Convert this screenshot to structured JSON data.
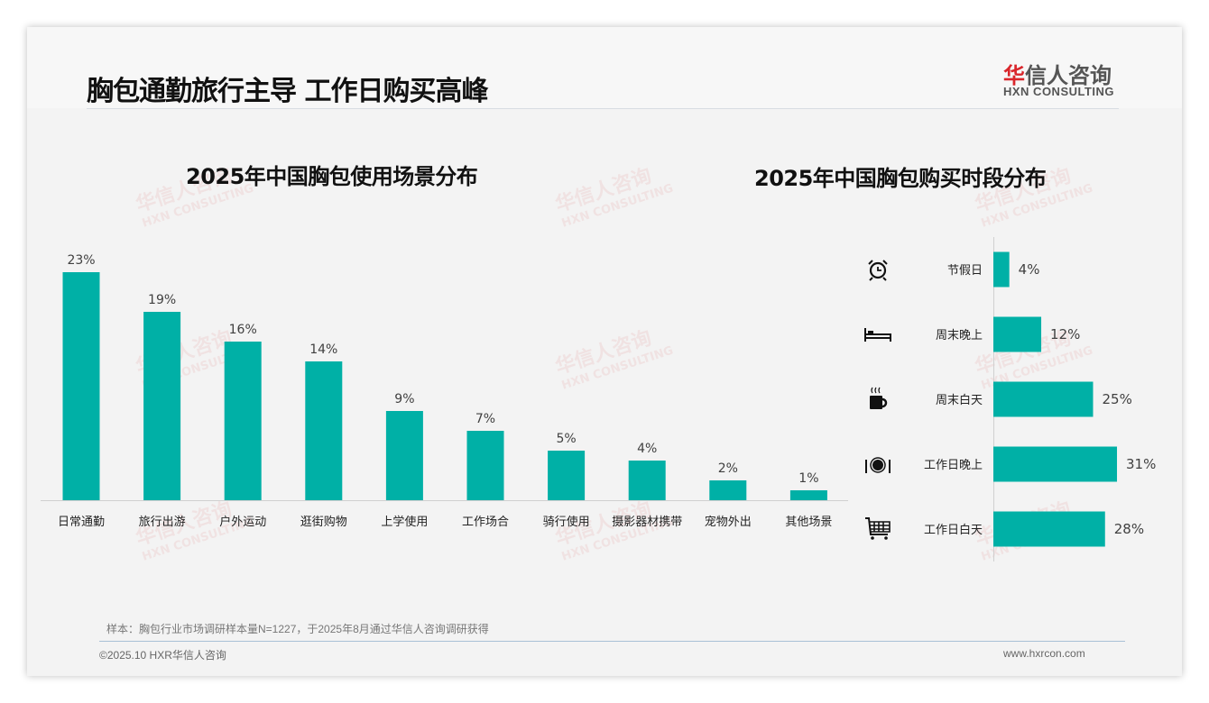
{
  "header": {
    "title": "胸包通勤旅行主导 工作日购买高峰"
  },
  "logo": {
    "cn_prefix": "华",
    "cn_rest": "信人咨询",
    "en": "HXN CONSULTING"
  },
  "colors": {
    "bar": "#00b0a6",
    "logo_red": "#d9262b"
  },
  "chart_data": [
    {
      "type": "bar",
      "title": "2025年中国胸包使用场景分布",
      "categories": [
        "日常通勤",
        "旅行出游",
        "户外运动",
        "逛街购物",
        "上学使用",
        "工作场合",
        "骑行使用",
        "摄影器材携带",
        "宠物外出",
        "其他场景"
      ],
      "values": [
        23,
        19,
        16,
        14,
        9,
        7,
        5,
        4,
        2,
        1
      ],
      "labels": [
        "23%",
        "19%",
        "16%",
        "14%",
        "9%",
        "7%",
        "5%",
        "4%",
        "2%",
        "1%"
      ],
      "unit": "%",
      "ylim": [
        0,
        25
      ],
      "grid": false
    },
    {
      "type": "bar",
      "orientation": "horizontal",
      "title": "2025年中国胸包购买时段分布",
      "categories": [
        "节假日",
        "周末晚上",
        "周末白天",
        "工作日晚上",
        "工作日白天"
      ],
      "icons": [
        "alarm-clock-icon",
        "bed-icon",
        "coffee-mug-icon",
        "plate-cutlery-icon",
        "shopping-cart-icon"
      ],
      "values": [
        4,
        12,
        25,
        31,
        28
      ],
      "labels": [
        "4%",
        "12%",
        "25%",
        "31%",
        "28%"
      ],
      "unit": "%",
      "xlim": [
        0,
        35
      ],
      "grid": false
    }
  ],
  "footer": {
    "note": "样本：胸包行业市场调研样本量N=1227，于2025年8月通过华信人咨询调研获得",
    "copyright": "©2025.10 HXR华信人咨询",
    "website": "www.hxrcon.com"
  }
}
